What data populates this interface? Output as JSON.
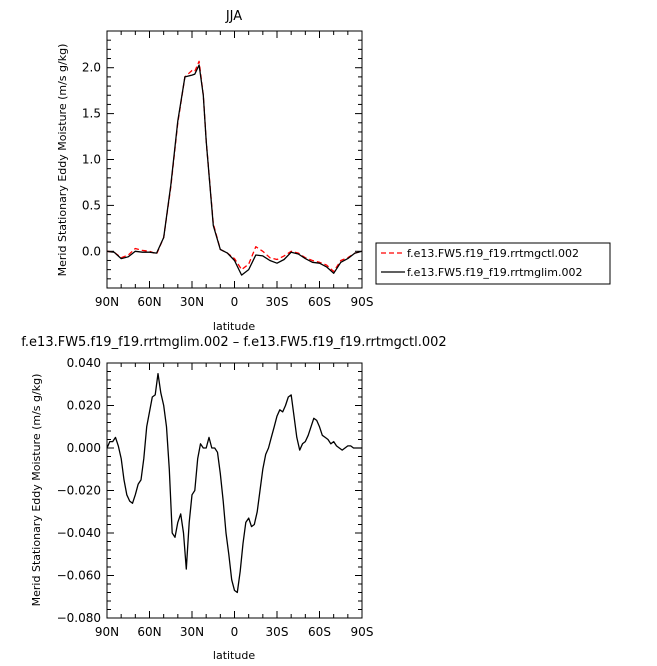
{
  "chart_data": [
    {
      "type": "line",
      "title": "JJA",
      "xlabel": "latitude",
      "ylabel": "Merid Stationary Eddy Moisture (m/s g/kg)",
      "xlim": [
        90,
        -90
      ],
      "ylim": [
        -0.4,
        2.4
      ],
      "xticks": [
        90,
        60,
        30,
        0,
        -30,
        -60,
        -90
      ],
      "xtick_labels": [
        "90N",
        "60N",
        "30N",
        "0",
        "30S",
        "60S",
        "90S"
      ],
      "yticks": [
        0,
        0.5,
        1,
        1.5,
        2
      ],
      "ytick_labels": [
        "0.0",
        "0.5",
        "1.0",
        "1.5",
        "2.0"
      ],
      "legend": "right",
      "series": [
        {
          "name": "f.e13.FW5.f19_f19.rrtmgctl.002",
          "color": "#ff0000",
          "dash": "dashed",
          "x": [
            90,
            85,
            80,
            75,
            70,
            65,
            60,
            55,
            50,
            45,
            40,
            35,
            30,
            28,
            25,
            22,
            20,
            15,
            10,
            5,
            0,
            -5,
            -10,
            -15,
            -20,
            -25,
            -30,
            -35,
            -40,
            -45,
            -50,
            -55,
            -60,
            -65,
            -70,
            -75,
            -80,
            -85,
            -90
          ],
          "y": [
            0.0,
            -0.01,
            -0.07,
            -0.04,
            0.03,
            0.01,
            0.0,
            -0.03,
            0.15,
            0.7,
            1.4,
            1.9,
            1.97,
            1.96,
            2.07,
            1.7,
            1.2,
            0.3,
            0.02,
            -0.02,
            -0.08,
            -0.2,
            -0.14,
            0.05,
            0.0,
            -0.07,
            -0.09,
            -0.05,
            0.0,
            -0.02,
            -0.07,
            -0.1,
            -0.12,
            -0.15,
            -0.22,
            -0.1,
            -0.07,
            -0.02,
            0.0
          ]
        },
        {
          "name": "f.e13.FW5.f19_f19.rrtmglim.002",
          "color": "#000000",
          "dash": "solid",
          "x": [
            90,
            85,
            80,
            75,
            70,
            65,
            60,
            55,
            50,
            45,
            40,
            35,
            30,
            28,
            25,
            22,
            20,
            15,
            10,
            5,
            0,
            -5,
            -10,
            -15,
            -20,
            -25,
            -30,
            -35,
            -40,
            -45,
            -50,
            -55,
            -60,
            -65,
            -70,
            -75,
            -80,
            -85,
            -90
          ],
          "y": [
            0.0,
            -0.01,
            -0.08,
            -0.06,
            0.0,
            -0.01,
            -0.01,
            -0.02,
            0.15,
            0.72,
            1.42,
            1.9,
            1.92,
            1.93,
            2.03,
            1.7,
            1.2,
            0.28,
            0.02,
            -0.02,
            -0.1,
            -0.26,
            -0.2,
            -0.04,
            -0.05,
            -0.1,
            -0.13,
            -0.09,
            -0.01,
            -0.03,
            -0.08,
            -0.12,
            -0.13,
            -0.17,
            -0.24,
            -0.12,
            -0.08,
            -0.02,
            0.0
          ]
        }
      ]
    },
    {
      "type": "line",
      "title": "f.e13.FW5.f19_f19.rrtmglim.002 – f.e13.FW5.f19_f19.rrtmgctl.002",
      "xlabel": "latitude",
      "ylabel": "Merid Stationary Eddy Moisture (m/s g/kg)",
      "xlim": [
        90,
        -90
      ],
      "ylim": [
        -0.08,
        0.04
      ],
      "xticks": [
        90,
        60,
        30,
        0,
        -30,
        -60,
        -90
      ],
      "xtick_labels": [
        "90N",
        "60N",
        "30N",
        "0",
        "30S",
        "60S",
        "90S"
      ],
      "yticks": [
        -0.08,
        -0.06,
        -0.04,
        -0.02,
        0,
        0.02,
        0.04
      ],
      "ytick_labels": [
        "−0.080",
        "−0.060",
        "−0.040",
        "−0.020",
        "0.000",
        "0.020",
        "0.040"
      ],
      "series": [
        {
          "color": "#000000",
          "x": [
            90,
            88,
            86,
            84,
            82,
            80,
            78,
            76,
            74,
            72,
            70,
            68,
            66,
            64,
            62,
            60,
            58,
            56,
            54,
            52,
            50,
            48,
            46,
            44,
            42,
            40,
            38,
            36,
            34,
            32,
            30,
            28,
            26,
            24,
            22,
            20,
            18,
            16,
            14,
            12,
            10,
            8,
            6,
            4,
            2,
            0,
            -2,
            -4,
            -6,
            -8,
            -10,
            -12,
            -14,
            -16,
            -18,
            -20,
            -22,
            -24,
            -26,
            -28,
            -30,
            -32,
            -34,
            -36,
            -38,
            -40,
            -42,
            -44,
            -46,
            -48,
            -50,
            -52,
            -54,
            -56,
            -58,
            -60,
            -62,
            -64,
            -66,
            -68,
            -70,
            -72,
            -74,
            -76,
            -78,
            -80,
            -82,
            -84,
            -86,
            -88,
            -90
          ],
          "y": [
            0.0,
            0.003,
            0.003,
            0.005,
            0.001,
            -0.005,
            -0.015,
            -0.022,
            -0.025,
            -0.026,
            -0.022,
            -0.017,
            -0.015,
            -0.005,
            0.01,
            0.017,
            0.024,
            0.025,
            0.035,
            0.026,
            0.02,
            0.01,
            -0.01,
            -0.04,
            -0.042,
            -0.035,
            -0.031,
            -0.04,
            -0.057,
            -0.035,
            -0.022,
            -0.02,
            -0.005,
            0.002,
            0.0,
            0.0,
            0.005,
            0.0,
            0.0,
            -0.002,
            -0.012,
            -0.025,
            -0.04,
            -0.05,
            -0.062,
            -0.067,
            -0.068,
            -0.058,
            -0.045,
            -0.035,
            -0.033,
            -0.037,
            -0.036,
            -0.03,
            -0.02,
            -0.01,
            -0.003,
            0.0,
            0.005,
            0.01,
            0.015,
            0.018,
            0.017,
            0.02,
            0.024,
            0.025,
            0.015,
            0.005,
            -0.001,
            0.002,
            0.003,
            0.006,
            0.01,
            0.014,
            0.013,
            0.01,
            0.006,
            0.005,
            0.004,
            0.002,
            0.003,
            0.001,
            0.0,
            -0.001,
            0.0,
            0.001,
            0.001,
            0.0,
            0.0,
            0.0,
            0.0
          ]
        }
      ]
    }
  ]
}
